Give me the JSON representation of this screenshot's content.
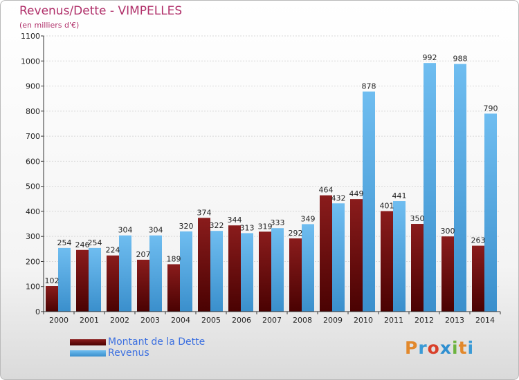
{
  "title": "Revenus/Dette - VIMPELLES",
  "subtitle": "(en milliers d'€)",
  "legend": {
    "dette_label": "Montant de la Dette",
    "revenus_label": "Revenus"
  },
  "logo": {
    "text": "Proxiti",
    "letter_colors": [
      "#e2882b",
      "#3a9ad6",
      "#d9402a",
      "#2f8fd0",
      "#6cb33f",
      "#e2882b",
      "#3a9ad6"
    ]
  },
  "colors": {
    "dette_top": "#8a1c1c",
    "dette_bottom": "#4a0202",
    "revenus_top": "#6fbdf0",
    "revenus_bottom": "#3a8fcc",
    "title": "#b0306a",
    "legend_text": "#3b6fe0"
  },
  "chart_data": {
    "type": "bar",
    "categories": [
      "2000",
      "2001",
      "2002",
      "2003",
      "2004",
      "2005",
      "2006",
      "2007",
      "2008",
      "2009",
      "2010",
      "2011",
      "2012",
      "2013",
      "2014"
    ],
    "series": [
      {
        "name": "Montant de la Dette",
        "values": [
          102,
          246,
          224,
          207,
          189,
          374,
          344,
          319,
          292,
          464,
          449,
          401,
          350,
          300,
          263
        ]
      },
      {
        "name": "Revenus",
        "values": [
          254,
          254,
          304,
          304,
          320,
          322,
          313,
          333,
          349,
          432,
          878,
          441,
          992,
          988,
          790
        ]
      }
    ],
    "ylim": [
      0,
      1100
    ],
    "yticks": [
      0,
      100,
      200,
      300,
      400,
      500,
      600,
      700,
      800,
      900,
      1000,
      1100
    ],
    "grid": true,
    "legend_position": "bottom-left"
  }
}
